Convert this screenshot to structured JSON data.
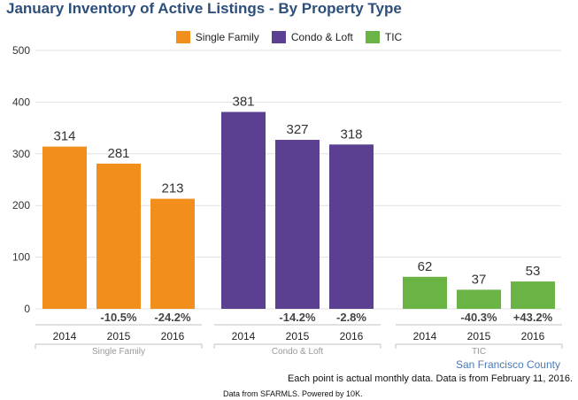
{
  "title": "January Inventory of Active Listings - By Property Type",
  "legend": [
    {
      "label": "Single Family",
      "color": "#f28e1c"
    },
    {
      "label": "Condo & Loft",
      "color": "#5b3f91"
    },
    {
      "label": "TIC",
      "color": "#6ab445"
    }
  ],
  "county": "San Francisco County",
  "note": "Each point is actual monthly data. Data is from February 11, 2016.",
  "footer": "Data from SFARMLS. Powered by 10K.",
  "chart_data": {
    "type": "bar",
    "title": "January Inventory of Active Listings - By Property Type",
    "ylim": [
      0,
      500
    ],
    "yticks": [
      0,
      100,
      200,
      300,
      400,
      500
    ],
    "groups": [
      {
        "name": "Single Family",
        "color": "#f28e1c",
        "bars": [
          {
            "year": "2014",
            "value": 314,
            "change": ""
          },
          {
            "year": "2015",
            "value": 281,
            "change": "-10.5%"
          },
          {
            "year": "2016",
            "value": 213,
            "change": "-24.2%"
          }
        ]
      },
      {
        "name": "Condo & Loft",
        "color": "#5b3f91",
        "bars": [
          {
            "year": "2014",
            "value": 381,
            "change": ""
          },
          {
            "year": "2015",
            "value": 327,
            "change": "-14.2%"
          },
          {
            "year": "2016",
            "value": 318,
            "change": "-2.8%"
          }
        ]
      },
      {
        "name": "TIC",
        "color": "#6ab445",
        "bars": [
          {
            "year": "2014",
            "value": 62,
            "change": ""
          },
          {
            "year": "2015",
            "value": 37,
            "change": "-40.3%"
          },
          {
            "year": "2016",
            "value": 53,
            "change": "+43.2%"
          }
        ]
      }
    ]
  }
}
